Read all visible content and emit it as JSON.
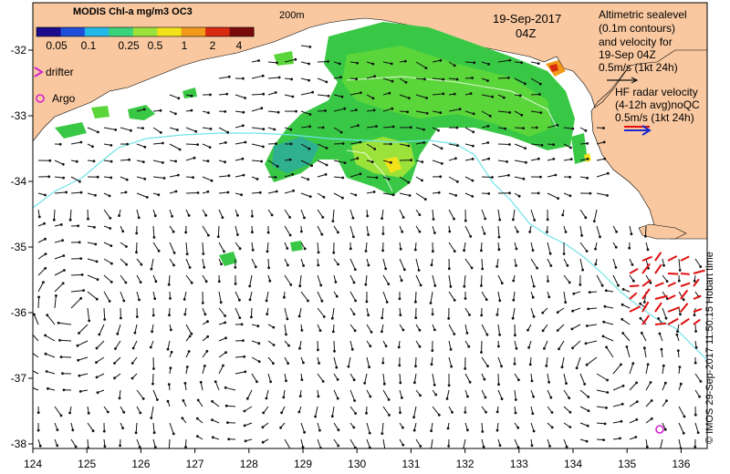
{
  "colorbar": {
    "title": "MODIS Chl-a mg/m3 OC3",
    "ticks": [
      "0.05",
      "0.1",
      "0.25",
      "0.5",
      "1",
      "2",
      "4"
    ],
    "colors": [
      "#1a0a8c",
      "#1f4fd8",
      "#22b8e8",
      "#3ad27a",
      "#9be23a",
      "#f2e21a",
      "#f29a1a",
      "#d82a10",
      "#7a0a0a"
    ]
  },
  "contour_label": "200m",
  "date": {
    "day": "19-Sep-2017",
    "hour": "04Z"
  },
  "legend": {
    "drifter": "drifter",
    "argo": "Argo",
    "altimetry_lines": [
      "Altimetric sealevel",
      "(0.1m contours)",
      "and velocity for",
      "19-Sep 04Z",
      "0.5m/s (1kt 24h)"
    ],
    "hf_lines": [
      "HF radar velocity",
      "(4-12h avg)noQC",
      "0.5m/s (1kt 24h)"
    ]
  },
  "axes": {
    "x_ticks": [
      "124",
      "125",
      "126",
      "127",
      "128",
      "129",
      "130",
      "131",
      "132",
      "133",
      "134",
      "135",
      "136"
    ],
    "y_ticks": [
      "-32",
      "-33",
      "-34",
      "-35",
      "-36",
      "-37",
      "-38"
    ]
  },
  "credit": "© IMOS 29-Sep-2017 11:50:15 Hobart time",
  "colors": {
    "land": "#f9c8a0",
    "shelf_contour": "#6fe3e8",
    "velocity_arrow": "#111111",
    "hf_arrow": "#e01010",
    "argo_marker": "#d020d0",
    "drifter_marker": "#d020d0"
  }
}
